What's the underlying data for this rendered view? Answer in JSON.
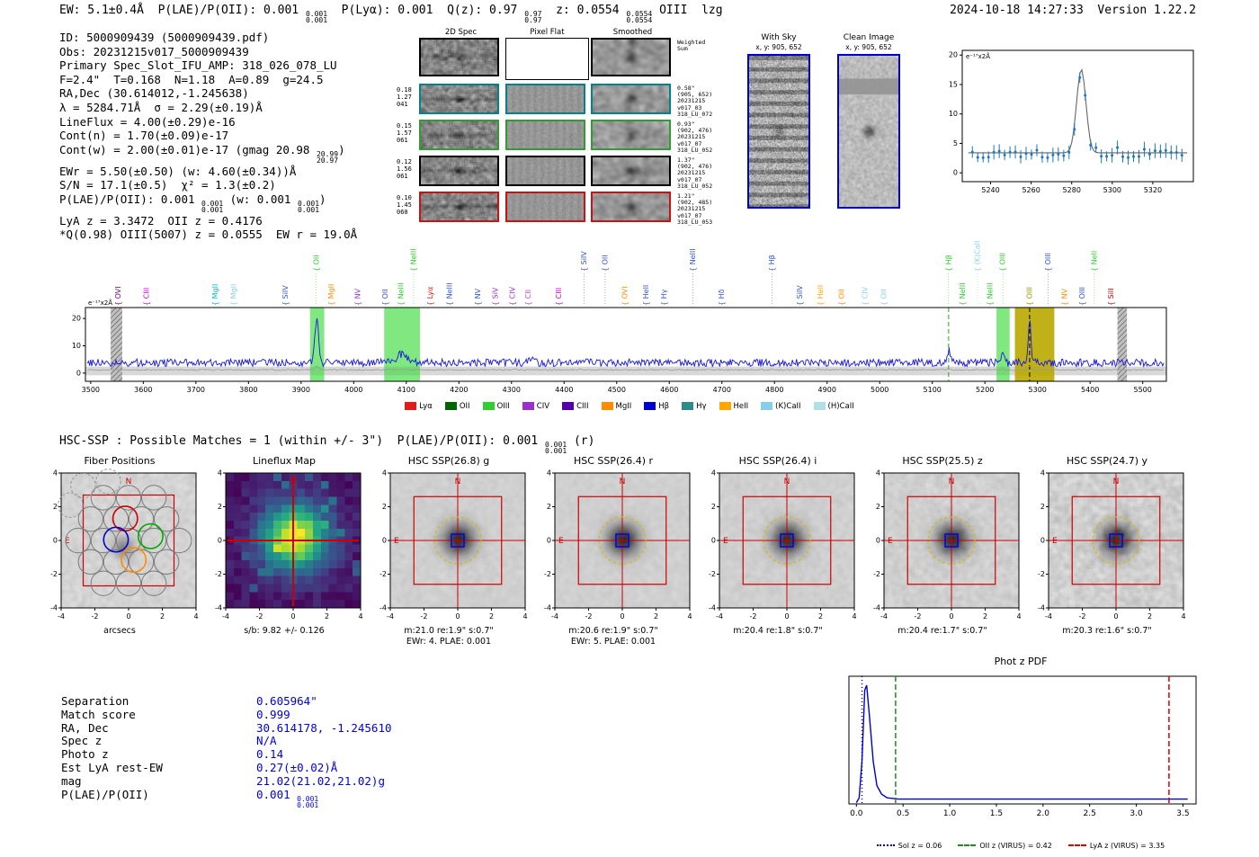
{
  "header": {
    "left_segments": [
      {
        "t": "EW: 5.1±0.4Å  P(LAE)/P(OII): 0.001 "
      },
      {
        "s": [
          "0.001",
          "0.001"
        ]
      },
      {
        "t": "  P(Lyα): 0.001  Q(z): 0.97 "
      },
      {
        "s": [
          "0.97",
          "0.97"
        ]
      },
      {
        "t": "  z: 0.0554 "
      },
      {
        "s": [
          "0.0554",
          "0.0554"
        ]
      },
      {
        "t": " OIII  lzg"
      }
    ],
    "right": "2024-10-18 14:27:33  Version 1.22.2"
  },
  "info_block": {
    "lines": [
      [
        {
          "t": "ID: 5000909439 (5000909439.pdf)"
        }
      ],
      [
        {
          "t": "Obs: 20231215v017_5000909439"
        }
      ],
      [
        {
          "t": "Primary Spec_Slot_IFU_AMP: 318_026_078_LU"
        }
      ],
      [
        {
          "t": "F=2.4\"  T=0.168  N=1.18  A=0.89  g=24.5"
        }
      ],
      [
        {
          "t": "RA,Dec (30.614012,-1.245638)"
        }
      ],
      [
        {
          "t": "λ = 5284.71Å  σ = 2.29(±0.19)Å"
        }
      ],
      [
        {
          "t": "LineFlux = 4.00(±0.29)e-16"
        }
      ],
      [
        {
          "t": "Cont(n) = 1.70(±0.09)e-17"
        }
      ],
      [
        {
          "t": "Cont(w) = 2.00(±0.01)e-17 (gmag 20.98 "
        },
        {
          "s": [
            "20.99",
            "20.97"
          ]
        },
        {
          "t": ")"
        }
      ],
      [
        {
          "t": "EWr = 5.50(±0.50) (w: 4.60(±0.34))Å"
        }
      ],
      [
        {
          "t": "S/N = 17.1(±0.5)  χ² = 1.3(±0.2)"
        }
      ],
      [
        {
          "t": "P(LAE)/P(OII): 0.001 "
        },
        {
          "s": [
            "0.001",
            "0.001"
          ]
        },
        {
          "t": " (w: 0.001 "
        },
        {
          "s": [
            "0.001",
            "0.001"
          ]
        },
        {
          "t": ")"
        }
      ],
      [
        {
          "t": "LyA z = 3.3472  OII z = 0.4176"
        }
      ],
      [
        {
          "t": "*Q(0.98) OIII(5007) z = 0.0555  EW r = 19.0Å"
        }
      ]
    ]
  },
  "spec2d": {
    "col_titles": [
      "2D Spec",
      "Pixel Flat",
      "Smoothed"
    ],
    "rows": [
      {
        "border": "#000000",
        "left": [],
        "right": [
          "Weighted",
          "Sum"
        ]
      },
      {
        "border": "#00838a",
        "left": [
          "0.18",
          "1.27",
          "041"
        ],
        "right": [
          "0.58\"",
          "(905, 652)",
          "20231215",
          "v017_03",
          "318_LU_072"
        ]
      },
      {
        "border": "#2e9e2e",
        "left": [
          "0.15",
          "1.57",
          "061"
        ],
        "right": [
          "0.93\"",
          "(902, 476)",
          "20231215",
          "v017_07",
          "318_LU_052"
        ]
      },
      {
        "border": "#000000",
        "left": [
          "0.12",
          "1.56",
          "061"
        ],
        "right": [
          "1.37\"",
          "(902, 476)",
          "20231215",
          "v017_07",
          "318_LU_052"
        ]
      },
      {
        "border": "#cc1111",
        "left": [
          "0.10",
          "1.45",
          "060"
        ],
        "right": [
          "1.21\"",
          "(902, 485)",
          "20231215",
          "v017_07",
          "318_LU_053"
        ]
      }
    ],
    "withsky": {
      "title": "With Sky",
      "sub": "x, y: 905, 652"
    },
    "clean": {
      "title": "Clean Image",
      "sub": "x, y: 905, 652"
    }
  },
  "hsc": {
    "line_segments": [
      {
        "t": "HSC-SSP : Possible Matches = 1 (within +/- 3\")  P(LAE)/P(OII): 0.001 "
      },
      {
        "s": [
          "0.001",
          "0.001"
        ]
      },
      {
        "t": " (r)"
      }
    ]
  },
  "cutouts": {
    "axis_ticks": [
      -4,
      -2,
      0,
      2,
      4
    ],
    "compass_n": "N",
    "compass_e": "E",
    "panels": [
      {
        "key": "fiber",
        "type": "fiber",
        "title": "Fiber Positions",
        "caption": "arcsecs"
      },
      {
        "key": "lineflux",
        "type": "lineflux",
        "title": "Lineflux Map",
        "caption": "s/b: 9.82 +/- 0.126"
      },
      {
        "key": "hsc-g",
        "type": "hsc",
        "title": "HSC SSP(26.8) g",
        "caption": "m:21.0 re:1.9\" s:0.7\"",
        "caption2": "EWr: 4. PLAE: 0.001"
      },
      {
        "key": "hsc-r",
        "type": "hsc",
        "title": "HSC SSP(26.4) r",
        "caption": "m:20.6 re:1.9\" s:0.7\"",
        "caption2": "EWr: 5. PLAE: 0.001"
      },
      {
        "key": "hsc-i",
        "type": "hsc",
        "title": "HSC SSP(26.4) i",
        "caption": "m:20.4 re:1.8\" s:0.7\""
      },
      {
        "key": "hsc-z",
        "type": "hsc",
        "title": "HSC SSP(25.5) z",
        "caption": "m:20.4 re:1.7\" s:0.7\""
      },
      {
        "key": "hsc-y",
        "type": "hsc",
        "title": "HSC SSP(24.7) y",
        "caption": "m:20.3 re:1.6\" s:0.7\""
      }
    ]
  },
  "match": {
    "rows": [
      {
        "label": "Separation",
        "value": [
          {
            "t": "0.605964\""
          }
        ]
      },
      {
        "label": "Match score",
        "value": [
          {
            "t": "0.999"
          }
        ]
      },
      {
        "label": "RA, Dec",
        "value": [
          {
            "t": "30.614178, -1.245610"
          }
        ]
      },
      {
        "label": "Spec z",
        "value": [
          {
            "t": "N/A"
          }
        ]
      },
      {
        "label": "Photo z",
        "value": [
          {
            "t": "0.14"
          }
        ]
      },
      {
        "label": "Est LyA rest-EW",
        "value": [
          {
            "t": "0.27(±0.02)Å"
          }
        ]
      },
      {
        "label": "mag",
        "value": [
          {
            "t": "21.02(21.02,21.02)g"
          }
        ]
      },
      {
        "label": "P(LAE)/P(OII)",
        "value": [
          {
            "t": "0.001 "
          },
          {
            "s": [
              "0.001",
              "0.001"
            ]
          }
        ]
      }
    ]
  },
  "chart_data": [
    {
      "id": "line_fit_inset",
      "type": "scatter",
      "title": "",
      "ylabel": "e⁻¹⁷x2Å",
      "x_ticks": [
        5240,
        5260,
        5280,
        5300,
        5320
      ],
      "y_ticks": [
        0,
        5,
        10,
        15,
        20
      ],
      "xlim": [
        5226,
        5340
      ],
      "ylim": [
        -1.5,
        20.8
      ],
      "gaussian_fit": {
        "center": 5284.71,
        "sigma": 2.29,
        "amplitude": 14.2,
        "baseline": 3.4
      },
      "errorbar": 0.8,
      "point_color": "#1f77b4",
      "fit_color": "#666666"
    },
    {
      "id": "full_spectrum",
      "type": "line",
      "ylabel": "e⁻¹⁷x2Å",
      "x_ticks": [
        3500,
        3600,
        3700,
        3800,
        3900,
        4000,
        4100,
        4200,
        4300,
        4400,
        4500,
        4600,
        4700,
        4800,
        4900,
        5000,
        5100,
        5200,
        5300,
        5400,
        5500
      ],
      "y_ticks": [
        0,
        10,
        20
      ],
      "xlim": [
        3490,
        5545
      ],
      "ylim": [
        -3,
        24
      ],
      "baseline": 3.8,
      "noise": 1.4,
      "line_color": "#1616dd",
      "peaks": [
        {
          "wl": 3930,
          "h": 17,
          "sig": 3.5
        },
        {
          "wl": 4090,
          "h": 3,
          "sig": 9
        },
        {
          "wl": 4340,
          "h": 1.5,
          "sig": 5
        },
        {
          "wl": 5131,
          "h": 4.5,
          "sig": 3.2
        },
        {
          "wl": 5234,
          "h": 3.2,
          "sig": 3
        },
        {
          "wl": 5285,
          "h": 15.5,
          "sig": 2.6
        }
      ],
      "bands": [
        {
          "x0": 3538,
          "x1": 3560,
          "type": "hatch"
        },
        {
          "x0": 3917,
          "x1": 3944,
          "type": "green"
        },
        {
          "x0": 4058,
          "x1": 4126,
          "type": "green"
        },
        {
          "x0": 5222,
          "x1": 5247,
          "type": "green"
        },
        {
          "x0": 5257,
          "x1": 5332,
          "type": "olive"
        },
        {
          "x0": 5452,
          "x1": 5470,
          "type": "hatch"
        }
      ],
      "vlines": [
        {
          "x": 5131,
          "color": "#22aa22",
          "style": "dashed"
        },
        {
          "x": 5285,
          "color": "#000000",
          "style": "dashed"
        }
      ],
      "line_labels": [
        {
          "name": "OVI",
          "wl": 3552,
          "color": "#800080",
          "tier": 0
        },
        {
          "name": "CIII",
          "wl": 3606,
          "color": "#cc00cc",
          "tier": 0
        },
        {
          "name": "MgII",
          "wl": 3737,
          "color": "#00b8d4",
          "tier": 0
        },
        {
          "name": "MgII",
          "wl": 3772,
          "color": "#87ceeb",
          "tier": 0
        },
        {
          "name": "SiIV",
          "wl": 3870,
          "color": "#3355cc",
          "tier": 0
        },
        {
          "name": "OII",
          "wl": 3929,
          "color": "#32cd32",
          "tier": 1
        },
        {
          "name": "MgII",
          "wl": 3958,
          "color": "#ff8c00",
          "tier": 0
        },
        {
          "name": "NV",
          "wl": 4008,
          "color": "#9932cc",
          "tier": 0
        },
        {
          "name": "OII",
          "wl": 4060,
          "color": "#3355cc",
          "tier": 0
        },
        {
          "name": "NeIII",
          "wl": 4090,
          "color": "#32cd32",
          "tier": 0
        },
        {
          "name": "NeIII",
          "wl": 4114,
          "color": "#32cd32",
          "tier": 1
        },
        {
          "name": "Lyα",
          "wl": 4146,
          "color": "#e41a1c",
          "tier": 0
        },
        {
          "name": "NeIII",
          "wl": 4182,
          "color": "#3355cc",
          "tier": 0
        },
        {
          "name": "NV",
          "wl": 4236,
          "color": "#3355cc",
          "tier": 0
        },
        {
          "name": "SiV",
          "wl": 4270,
          "color": "#9932cc",
          "tier": 0
        },
        {
          "name": "CIV",
          "wl": 4302,
          "color": "#9932cc",
          "tier": 0
        },
        {
          "name": "CII",
          "wl": 4332,
          "color": "#cc44cc",
          "tier": 0
        },
        {
          "name": "CIII",
          "wl": 4390,
          "color": "#cc00cc",
          "tier": 0
        },
        {
          "name": "SiIV",
          "wl": 4438,
          "color": "#3355cc",
          "tier": 1
        },
        {
          "name": "OII",
          "wl": 4478,
          "color": "#3355cc",
          "tier": 1
        },
        {
          "name": "OVI",
          "wl": 4516,
          "color": "#ff8c00",
          "tier": 0
        },
        {
          "name": "HeII",
          "wl": 4556,
          "color": "#3355cc",
          "tier": 0
        },
        {
          "name": "Hγ",
          "wl": 4590,
          "color": "#3355cc",
          "tier": 0
        },
        {
          "name": "NeIII",
          "wl": 4645,
          "color": "#3355cc",
          "tier": 1
        },
        {
          "name": "Hδ",
          "wl": 4700,
          "color": "#3355cc",
          "tier": 0
        },
        {
          "name": "Hβ",
          "wl": 4795,
          "color": "#3355cc",
          "tier": 1
        },
        {
          "name": "SiIV",
          "wl": 4848,
          "color": "#3355cc",
          "tier": 0
        },
        {
          "name": "HeII",
          "wl": 4888,
          "color": "#ffa500",
          "tier": 0
        },
        {
          "name": "OII",
          "wl": 4928,
          "color": "#ff8c00",
          "tier": 0
        },
        {
          "name": "CIV",
          "wl": 4972,
          "color": "#87ceeb",
          "tier": 0
        },
        {
          "name": "OII",
          "wl": 5008,
          "color": "#87ceeb",
          "tier": 0
        },
        {
          "name": "Hβ",
          "wl": 5131,
          "color": "#32cd32",
          "tier": 1
        },
        {
          "name": "NeIII",
          "wl": 5158,
          "color": "#32cd32",
          "tier": 0
        },
        {
          "name": "(K)CaII",
          "wl": 5186,
          "color": "#87ceeb",
          "tier": 1
        },
        {
          "name": "NeIII",
          "wl": 5210,
          "color": "#32cd32",
          "tier": 0
        },
        {
          "name": "OIII",
          "wl": 5234,
          "color": "#32cd32",
          "tier": 1
        },
        {
          "name": "OIII",
          "wl": 5285,
          "color": "#999900",
          "tier": 0
        },
        {
          "name": "OIII",
          "wl": 5320,
          "color": "#3355cc",
          "tier": 1
        },
        {
          "name": "NV",
          "wl": 5352,
          "color": "#ff8c00",
          "tier": 0
        },
        {
          "name": "OIII",
          "wl": 5385,
          "color": "#3355cc",
          "tier": 0
        },
        {
          "name": "NeII",
          "wl": 5408,
          "color": "#32cd32",
          "tier": 1
        },
        {
          "name": "SiII",
          "wl": 5440,
          "color": "#cc0000",
          "tier": 0
        }
      ],
      "legend": [
        {
          "label": "Lyα",
          "color": "#e41a1c"
        },
        {
          "label": "OII",
          "color": "#006400"
        },
        {
          "label": "OIII",
          "color": "#32cd32"
        },
        {
          "label": "CIV",
          "color": "#9932cc"
        },
        {
          "label": "CIII",
          "color": "#5500aa"
        },
        {
          "label": "MgII",
          "color": "#ff8c00"
        },
        {
          "label": "Hβ",
          "color": "#0000cd"
        },
        {
          "label": "Hγ",
          "color": "#2e8b8b"
        },
        {
          "label": "HeII",
          "color": "#ffa500"
        },
        {
          "label": "(K)CaII",
          "color": "#87ceeb"
        },
        {
          "label": "(H)CaII",
          "color": "#b0e0e6"
        }
      ]
    },
    {
      "id": "phot_z_pdf",
      "type": "line",
      "title": "Phot z PDF",
      "x_ticks": [
        0.0,
        0.5,
        1.0,
        1.5,
        2.0,
        2.5,
        3.0,
        3.5
      ],
      "xlim": [
        0,
        3.6
      ],
      "ylim": [
        0,
        1.05
      ],
      "line_color": "#0000cc",
      "points": [
        [
          0,
          0.01
        ],
        [
          0.03,
          0.05
        ],
        [
          0.06,
          0.35
        ],
        [
          0.09,
          0.93
        ],
        [
          0.11,
          0.97
        ],
        [
          0.14,
          0.72
        ],
        [
          0.18,
          0.35
        ],
        [
          0.22,
          0.15
        ],
        [
          0.27,
          0.08
        ],
        [
          0.33,
          0.05
        ],
        [
          0.45,
          0.04
        ],
        [
          0.7,
          0.04
        ],
        [
          1.2,
          0.04
        ],
        [
          2.0,
          0.04
        ],
        [
          3.0,
          0.04
        ],
        [
          3.55,
          0.04
        ]
      ],
      "vlines": [
        {
          "z": 0.06,
          "color": "#00008b",
          "dash": "1,3",
          "label": "Sol z = 0.06"
        },
        {
          "z": 0.42,
          "color": "#228b22",
          "dash": "6,3",
          "label": "OII z (VIRUS) = 0.42"
        },
        {
          "z": 3.35,
          "color": "#dd0000",
          "dash": "6,3",
          "label": "LyA z (VIRUS) = 3.35"
        }
      ]
    }
  ]
}
